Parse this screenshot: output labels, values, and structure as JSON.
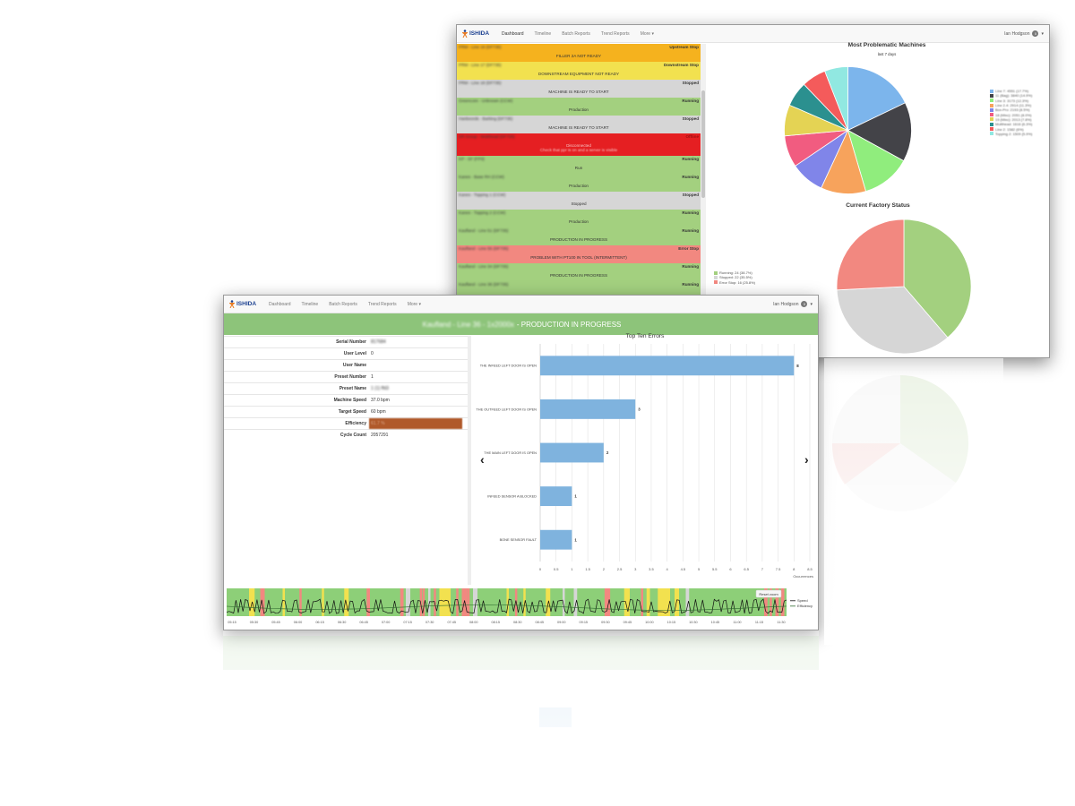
{
  "nav": {
    "brand": "ISHIDA",
    "links": [
      "Dashboard",
      "Timeline",
      "Batch Reports",
      "Trend Reports",
      "More"
    ],
    "user": "Ian Hodgson",
    "badge": "0"
  },
  "back_window": {
    "status_rows": [
      {
        "name": "PRM - Line 16 (DF735)",
        "state": "Upstream Stop",
        "message": "FILLER 2A NOT READY",
        "color": "#f5b21e"
      },
      {
        "name": "PRM - Line 17 (DF735)",
        "state": "Downstream Stop",
        "message": "DOWNSTREAM EQUIPMENT NOT READY",
        "color": "#f2e14f"
      },
      {
        "name": "PRM - Line 18 (DF735)",
        "state": "Stopped",
        "message": "MACHINE IS READY TO START",
        "color": "#d6d6d6"
      },
      {
        "name": "Greencore - Unknown (CCW)",
        "state": "Running",
        "message": "Production",
        "color": "#a3d07f"
      },
      {
        "name": "Hanbeords - Barking (DF735)",
        "state": "Stopped",
        "message": "MACHINE IS READY TO START",
        "color": "#d6d6d6"
      },
      {
        "name": "SR Group - Multihead (DF735)",
        "state": "Offline",
        "message": "Disconnected",
        "message2": "Check that ppr is on and a server is visible",
        "color": "#e51f22"
      },
      {
        "name": "KP - SF (FP3)",
        "state": "Running",
        "message": "Run",
        "color": "#a3d07f"
      },
      {
        "name": "Kanes - Base RH (CCW)",
        "state": "Running",
        "message": "Production",
        "color": "#a3d07f"
      },
      {
        "name": "Kanes - Topping 1 (CCW)",
        "state": "Stopped",
        "message": "Stopped",
        "color": "#d6d6d6"
      },
      {
        "name": "Kanes - Topping 2 (CCW)",
        "state": "Running",
        "message": "Production",
        "color": "#a3d07f"
      },
      {
        "name": "Kaufland - Line 51 (DF735)",
        "state": "Running",
        "message": "PRODUCTION IN PROGRESS",
        "color": "#a3d07f"
      },
      {
        "name": "Kaufland - Line 55 (DF735)",
        "state": "Error Stop",
        "message": "PROBLEM WITH PT100 IN TOOL (INTERMITTENT)",
        "color": "#f28880"
      },
      {
        "name": "Kaufland - Line 34 (DF735)",
        "state": "Running",
        "message": "PRODUCTION IN PROGRESS",
        "color": "#a3d07f"
      },
      {
        "name": "Kaufland - Line 36 (DF735)",
        "state": "Running",
        "message": "",
        "color": "#a3d07f"
      }
    ],
    "machines_chart": {
      "title": "Most Problematic Machines",
      "subtitle": "last 7 days",
      "legend": [
        {
          "label": "Line 7: 4551 (17.7%)",
          "color": "#7cb5ec"
        },
        {
          "label": "11 (Bag): 3840 (14.9%)",
          "color": "#434348"
        },
        {
          "label": "Line 3: 3173 (12.3%)",
          "color": "#90ed7d"
        },
        {
          "label": "Line 2.4: 2914 (11.3%)",
          "color": "#f7a35c"
        },
        {
          "label": "Box-Pro: 2193 (8.5%)",
          "color": "#8085e9"
        },
        {
          "label": "18 (Mixc): 2051 (8.0%)",
          "color": "#f15c80"
        },
        {
          "label": "19 (Mixc): 2013 (7.8%)",
          "color": "#e4d354"
        },
        {
          "label": "Multihead: 1616 (6.3%)",
          "color": "#2b908f"
        },
        {
          "label": "Line 2: 1582 (6%)",
          "color": "#f45b5b"
        },
        {
          "label": "Topping 2: 1509 (5.9%)",
          "color": "#91e8e1"
        }
      ]
    },
    "factory_chart": {
      "title": "Current Factory Status",
      "legend": [
        {
          "label": "Running: 24 (38.7%)",
          "color": "#a3d07f"
        },
        {
          "label": "Stopped: 22 (35.5%)",
          "color": "#d6d6d6"
        },
        {
          "label": "Error Stop: 16 (25.8%)",
          "color": "#f28880"
        }
      ]
    }
  },
  "front_window": {
    "banner_blur": "Kaufland - Line 36 - 1x2000x",
    "banner_text": " - PRODUCTION IN PROGRESS",
    "fields": [
      {
        "label": "Serial Number",
        "value": "817684",
        "blur": true
      },
      {
        "label": "User Level",
        "value": "0"
      },
      {
        "label": "User Name",
        "value": ""
      },
      {
        "label": "Preset Number",
        "value": "1"
      },
      {
        "label": "Preset Name",
        "value": "1 (1) ffd3",
        "blur": true
      },
      {
        "label": "Machine Speed",
        "value": "37.0 bpm"
      },
      {
        "label": "Target Speed",
        "value": "60 bpm"
      },
      {
        "label": "Efficiency",
        "value": "61.7 %",
        "highlight": true
      },
      {
        "label": "Cycle Count",
        "value": "2057291"
      }
    ],
    "reset_zoom": "Reset zoom",
    "timeline_legend": [
      "Speed",
      "Efficiency"
    ],
    "timeline_ticks": [
      "05:15",
      "05:30",
      "05:45",
      "06:00",
      "06:15",
      "06:30",
      "06:45",
      "07:00",
      "07:15",
      "07:30",
      "07:45",
      "08:00",
      "08:15",
      "08:30",
      "08:45",
      "09:00",
      "09:15",
      "09:30",
      "09:45",
      "10:00",
      "10:15",
      "10:30",
      "10:45",
      "11:00",
      "11:15",
      "11:30"
    ]
  },
  "chart_data": [
    {
      "type": "pie",
      "title": "Most Problematic Machines",
      "subtitle": "last 7 days",
      "categories": [
        "Line 7",
        "11 (Bag)",
        "Line 3",
        "Line 2.4",
        "Box-Pro",
        "18 (Mixc)",
        "19 (Mixc)",
        "Multihead",
        "Line 2",
        "Topping 2"
      ],
      "values": [
        4551,
        3840,
        3173,
        2914,
        2193,
        2051,
        2013,
        1616,
        1582,
        1509
      ],
      "colors": [
        "#7cb5ec",
        "#434348",
        "#90ed7d",
        "#f7a35c",
        "#8085e9",
        "#f15c80",
        "#e4d354",
        "#2b908f",
        "#f45b5b",
        "#91e8e1"
      ],
      "legend": "right"
    },
    {
      "type": "pie",
      "title": "Current Factory Status",
      "categories": [
        "Running",
        "Stopped",
        "Error Stop"
      ],
      "values": [
        24,
        22,
        16
      ],
      "colors": [
        "#a3d07f",
        "#d6d6d6",
        "#f28880"
      ],
      "legend": "left"
    },
    {
      "type": "bar",
      "title": "Top Ten Errors",
      "orientation": "horizontal",
      "categories": [
        "THE INFEED LEFT DOOR IS OPEN",
        "THE OUTFEED LEFT DOOR IS OPEN",
        "THE MAIN LEFT DOOR IS OPEN",
        "INFEED SENSOR A BLOCKED",
        "BONE SENSOR FAULT"
      ],
      "values": [
        8,
        3,
        2,
        1,
        1
      ],
      "xlabel": "Occurrences",
      "xlim": [
        0,
        8.5
      ],
      "xticks": [
        "0",
        "0.5",
        "1",
        "1.5",
        "2",
        "2.5",
        "3",
        "3.5",
        "4",
        "4.5",
        "5",
        "5.5",
        "6",
        "6.5",
        "7",
        "7.5",
        "8",
        "8.5"
      ],
      "color": "#7fb3de",
      "grid": true
    }
  ]
}
